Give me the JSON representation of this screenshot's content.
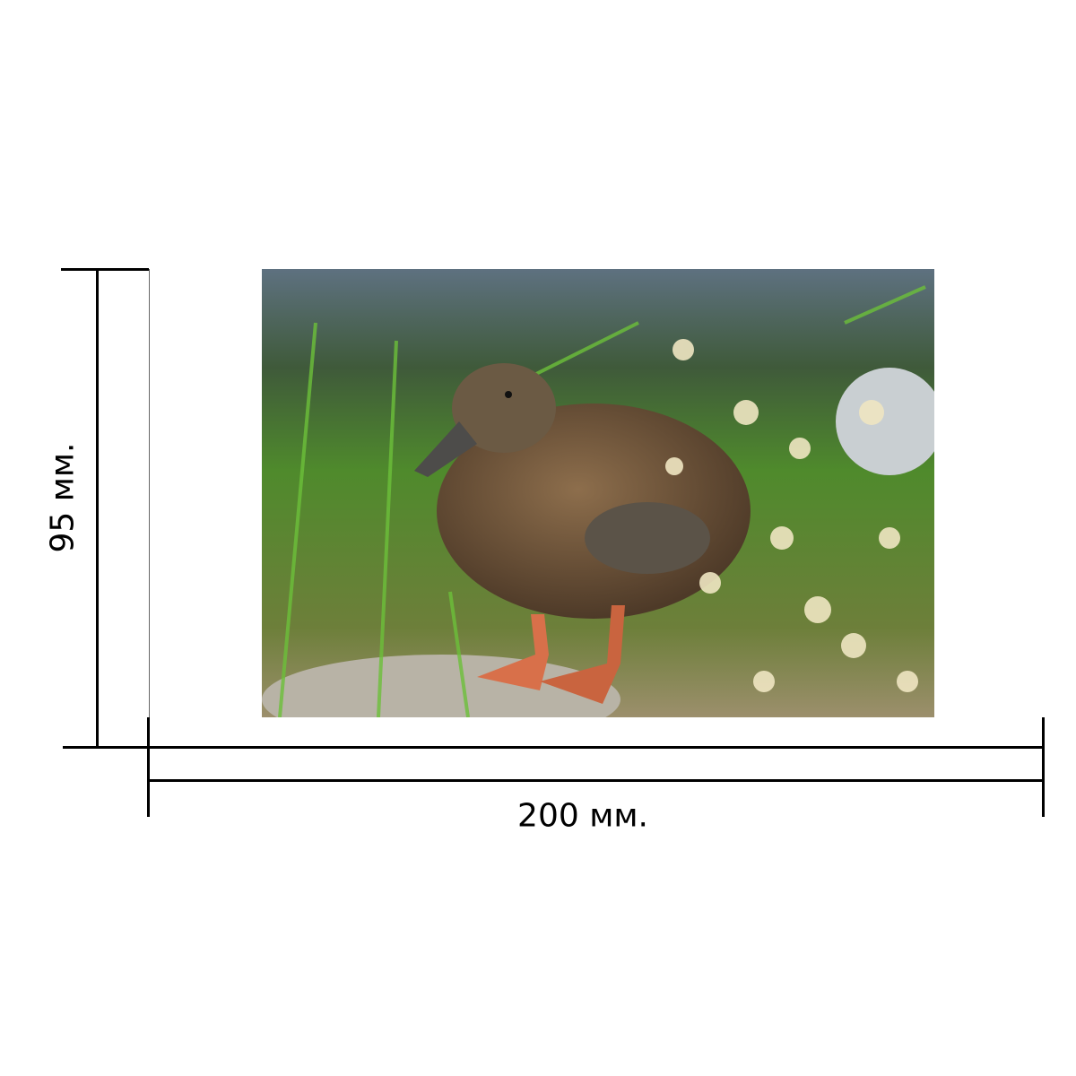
{
  "dimensions": {
    "height_label": "95 мм.",
    "width_label": "200 мм."
  },
  "photo": {
    "subject": "duck",
    "colors": {
      "grass": "#4f8a2c",
      "water": "#5e7180",
      "duck": "#7a5c3c",
      "feet": "#d8704a",
      "flowers": "#efe6c2"
    }
  }
}
